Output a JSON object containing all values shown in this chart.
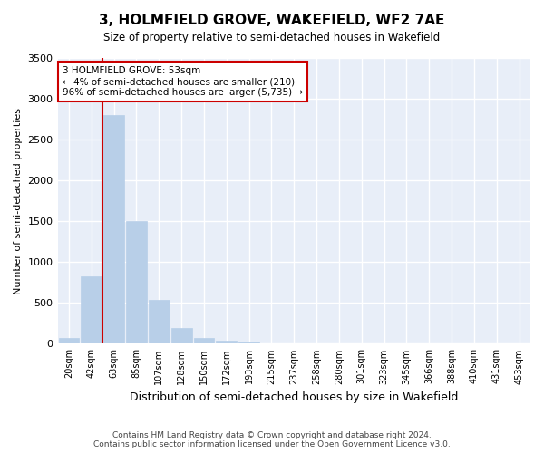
{
  "title": "3, HOLMFIELD GROVE, WAKEFIELD, WF2 7AE",
  "subtitle": "Size of property relative to semi-detached houses in Wakefield",
  "xlabel": "Distribution of semi-detached houses by size in Wakefield",
  "ylabel": "Number of semi-detached properties",
  "categories": [
    "20sqm",
    "42sqm",
    "63sqm",
    "85sqm",
    "107sqm",
    "128sqm",
    "150sqm",
    "172sqm",
    "193sqm",
    "215sqm",
    "237sqm",
    "258sqm",
    "280sqm",
    "301sqm",
    "323sqm",
    "345sqm",
    "366sqm",
    "388sqm",
    "410sqm",
    "431sqm",
    "453sqm"
  ],
  "values": [
    70,
    830,
    2800,
    1500,
    540,
    195,
    70,
    40,
    30,
    10,
    5,
    3,
    2,
    2,
    1,
    1,
    1,
    1,
    1,
    1,
    1
  ],
  "bar_color": "#b8cfe8",
  "bar_edge_color": "#b8cfe8",
  "property_line_color": "#cc0000",
  "annotation_text": "3 HOLMFIELD GROVE: 53sqm\n← 4% of semi-detached houses are smaller (210)\n96% of semi-detached houses are larger (5,735) →",
  "annotation_box_facecolor": "#ffffff",
  "annotation_box_edgecolor": "#cc0000",
  "ylim": [
    0,
    3500
  ],
  "yticks": [
    0,
    500,
    1000,
    1500,
    2000,
    2500,
    3000,
    3500
  ],
  "background_color": "#e8eef8",
  "grid_color": "#ffffff",
  "footer_line1": "Contains HM Land Registry data © Crown copyright and database right 2024.",
  "footer_line2": "Contains public sector information licensed under the Open Government Licence v3.0."
}
